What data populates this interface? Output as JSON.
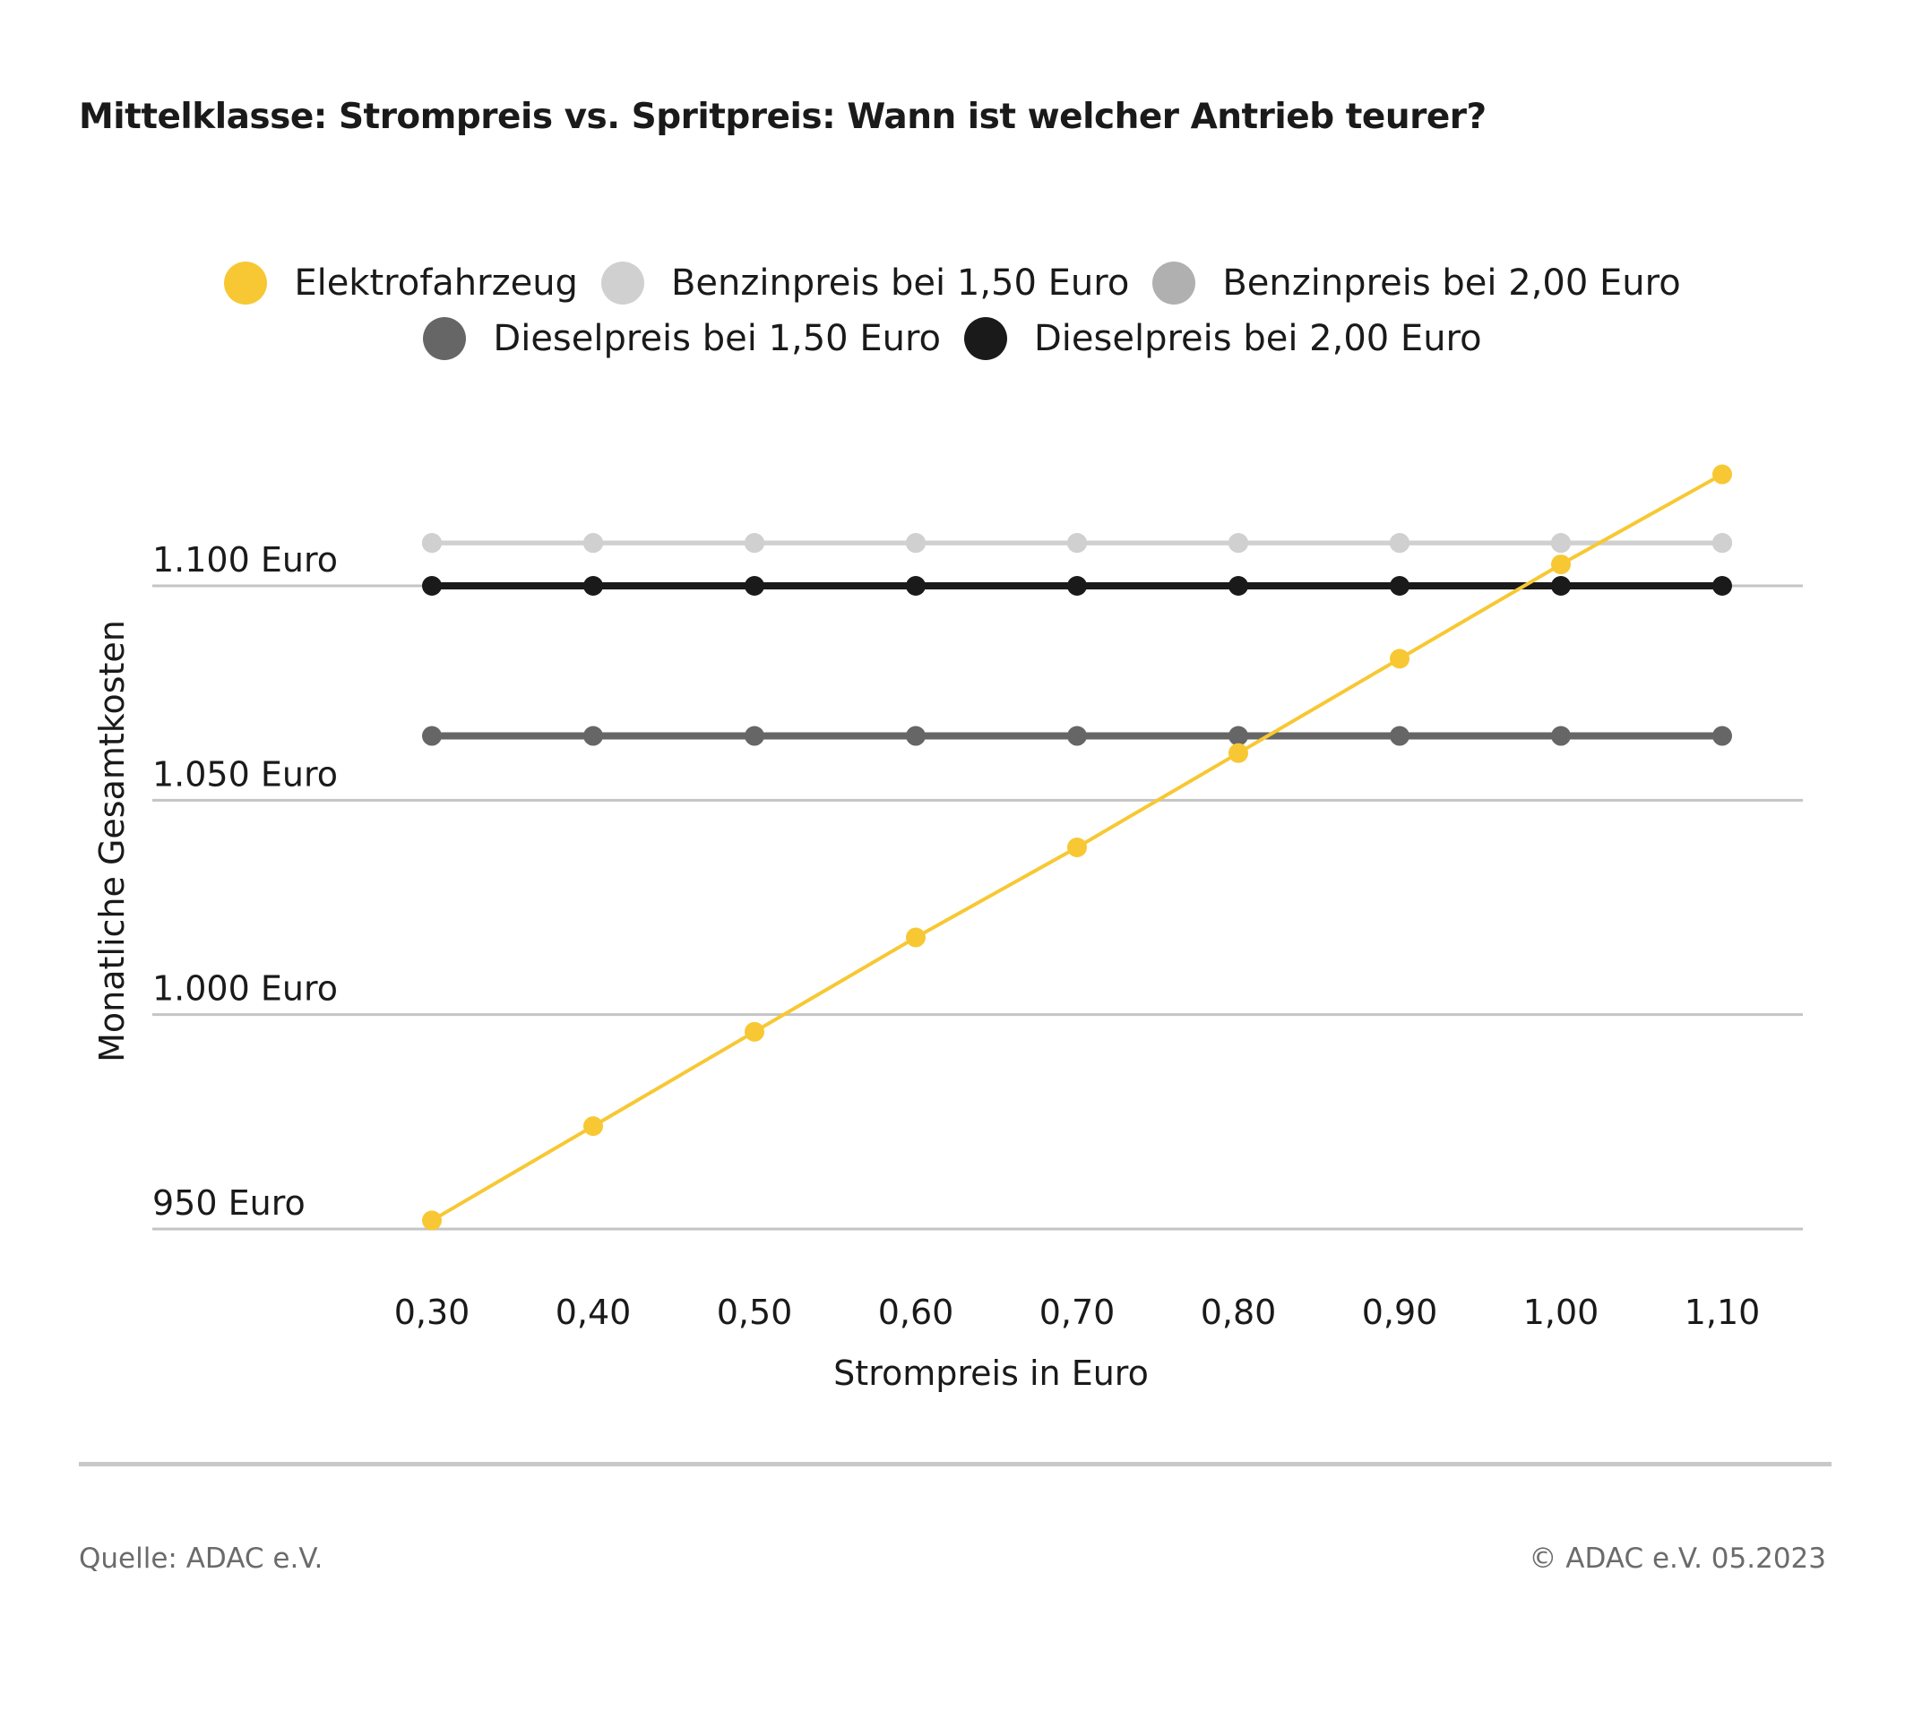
{
  "title": "Mittelklasse: Strompreis vs. Spritpreis: Wann ist welcher Antrieb teurer?",
  "footer": {
    "source": "Quelle: ADAC e.V.",
    "copyright": "© ADAC e.V. 05.2023"
  },
  "colors": {
    "elektro": "#f7c833",
    "benzin_150": "#d0d0d0",
    "benzin_200": "#b0b0b0",
    "diesel_150": "#666666",
    "diesel_200": "#1a1a1a",
    "gridline": "#c4c4c4"
  },
  "chart_data": {
    "type": "line",
    "xlabel": "Strompreis in Euro",
    "ylabel": "Monatliche Gesamtkosten",
    "x": [
      0.3,
      0.4,
      0.5,
      0.6,
      0.7,
      0.8,
      0.9,
      1.0,
      1.1
    ],
    "x_tick_labels": [
      "0,30",
      "0,40",
      "0,50",
      "0,60",
      "0,70",
      "0,80",
      "0,90",
      "1,00",
      "1,10"
    ],
    "y_ticks": [
      950,
      1000,
      1050,
      1100
    ],
    "y_tick_labels": [
      "950 Euro",
      "1.000 Euro",
      "1.050 Euro",
      "1.100 Euro"
    ],
    "ylim": [
      950,
      1100
    ],
    "grid": true,
    "legend_position": "top-center",
    "series": [
      {
        "name": "Elektrofahrzeug",
        "color": "#f7c833",
        "line_width": 4,
        "marker_r": 11,
        "values": [
          952,
          974,
          996,
          1018,
          1039,
          1061,
          1083,
          1105,
          1126
        ]
      },
      {
        "name": "Benzinpreis bei 1,50 Euro",
        "color": "#d0d0d0",
        "line_width": 5,
        "marker_r": 11,
        "values": [
          1110,
          1110,
          1110,
          1110,
          1110,
          1110,
          1110,
          1110,
          1110
        ]
      },
      {
        "name": "Benzinpreis bei 2,00 Euro",
        "color": "#b0b0b0",
        "line_width": 5,
        "marker_r": 11,
        "values": [
          1110,
          1110,
          1110,
          1110,
          1110,
          1110,
          1110,
          1110,
          1110
        ]
      },
      {
        "name": "Dieselpreis bei 1,50 Euro",
        "color": "#666666",
        "line_width": 8,
        "marker_r": 11,
        "values": [
          1065,
          1065,
          1065,
          1065,
          1065,
          1065,
          1065,
          1065,
          1065
        ]
      },
      {
        "name": "Dieselpreis bei 2,00 Euro",
        "color": "#1a1a1a",
        "line_width": 8,
        "marker_r": 11,
        "values": [
          1100,
          1100,
          1100,
          1100,
          1100,
          1100,
          1100,
          1100,
          1100
        ]
      }
    ],
    "draw_order": [
      2,
      1,
      4,
      3,
      0
    ]
  }
}
